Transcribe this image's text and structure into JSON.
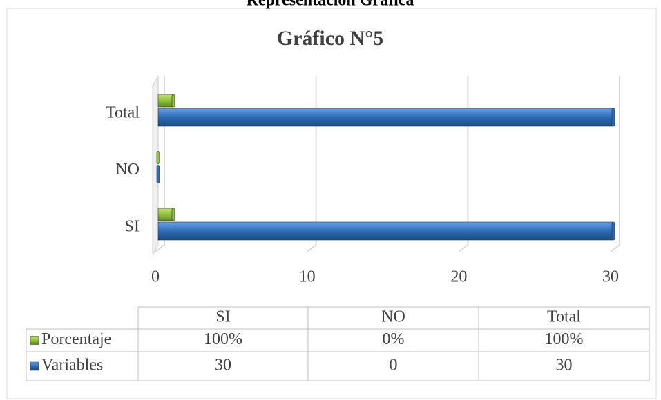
{
  "chart_data": {
    "type": "bar",
    "orientation": "horizontal",
    "heading": "Representación Gráfica",
    "title": "Gráfico N°5",
    "categories": [
      "SI",
      "NO",
      "Total"
    ],
    "series": [
      {
        "name": "Porcentaje",
        "color": "#92c13b",
        "values": [
          1,
          0,
          1
        ],
        "value_labels": [
          "100%",
          "0%",
          "100%"
        ]
      },
      {
        "name": "Variables",
        "color": "#2e6db6",
        "values": [
          30,
          0,
          30
        ]
      }
    ],
    "xlim": [
      0,
      30
    ],
    "xticks": [
      0,
      10,
      20,
      30
    ],
    "grid": true,
    "data_table": true
  }
}
